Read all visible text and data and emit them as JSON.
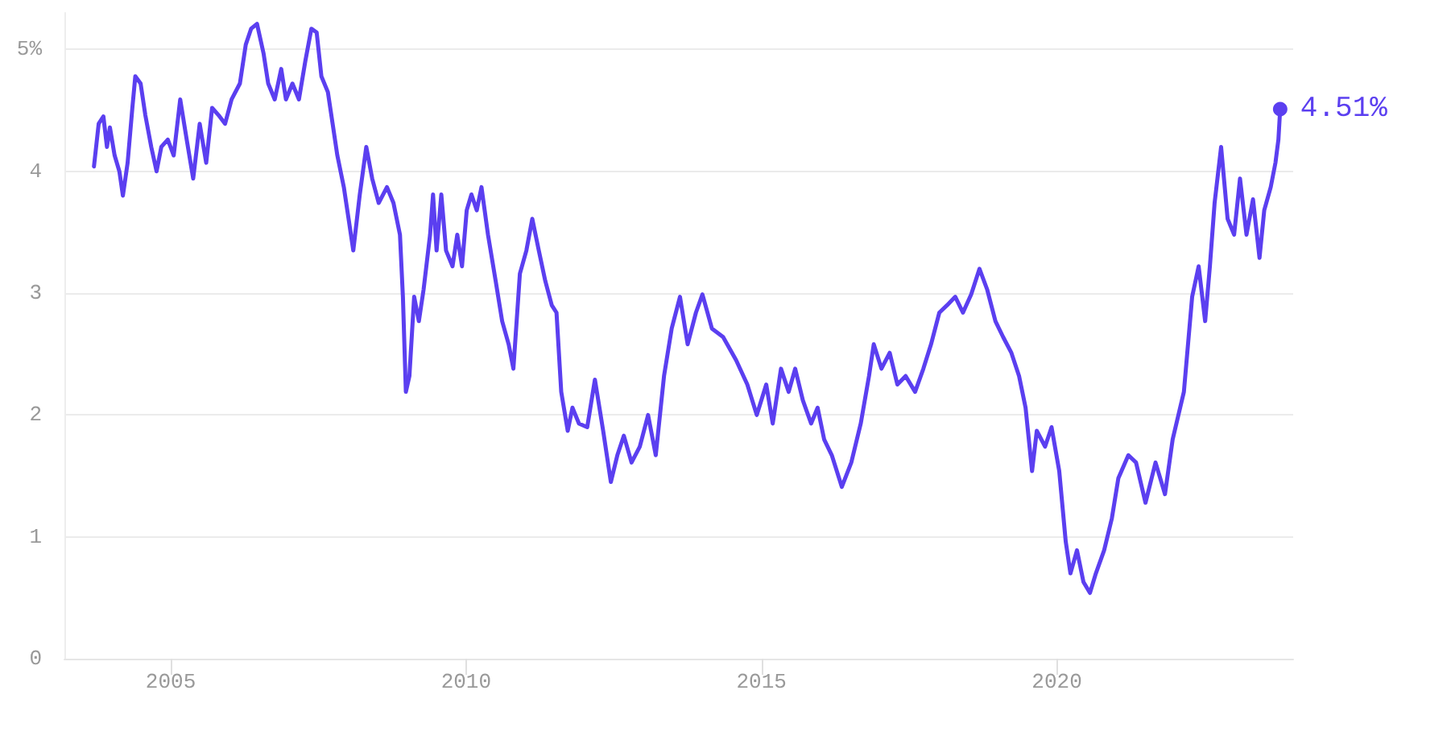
{
  "chart_data": {
    "type": "line",
    "x": [
      2003.7,
      2003.78,
      2003.86,
      2003.92,
      2003.97,
      2004.05,
      2004.13,
      2004.19,
      2004.27,
      2004.35,
      2004.4,
      2004.49,
      2004.57,
      2004.67,
      2004.76,
      2004.84,
      2004.95,
      2005.05,
      2005.16,
      2005.27,
      2005.38,
      2005.49,
      2005.6,
      2005.7,
      2005.81,
      2005.92,
      2006.03,
      2006.17,
      2006.27,
      2006.36,
      2006.46,
      2006.57,
      2006.65,
      2006.76,
      2006.87,
      2006.95,
      2007.06,
      2007.17,
      2007.28,
      2007.38,
      2007.47,
      2007.55,
      2007.66,
      2007.74,
      2007.82,
      2007.93,
      2008.01,
      2008.09,
      2008.2,
      2008.31,
      2008.41,
      2008.52,
      2008.66,
      2008.77,
      2008.88,
      2008.93,
      2008.98,
      2009.04,
      2009.12,
      2009.2,
      2009.28,
      2009.39,
      2009.44,
      2009.5,
      2009.58,
      2009.66,
      2009.77,
      2009.85,
      2009.93,
      2010.01,
      2010.09,
      2010.18,
      2010.26,
      2010.37,
      2010.5,
      2010.61,
      2010.72,
      2010.8,
      2010.91,
      2011.02,
      2011.12,
      2011.23,
      2011.34,
      2011.45,
      2011.53,
      2011.61,
      2011.72,
      2011.8,
      2011.91,
      2012.05,
      2012.18,
      2012.32,
      2012.45,
      2012.56,
      2012.67,
      2012.8,
      2012.94,
      2013.08,
      2013.21,
      2013.35,
      2013.48,
      2013.62,
      2013.75,
      2013.89,
      2014.0,
      2014.16,
      2014.35,
      2014.57,
      2014.76,
      2014.92,
      2015.08,
      2015.19,
      2015.33,
      2015.46,
      2015.57,
      2015.7,
      2015.84,
      2015.95,
      2016.06,
      2016.19,
      2016.36,
      2016.52,
      2016.68,
      2016.82,
      2016.9,
      2017.03,
      2017.17,
      2017.3,
      2017.44,
      2017.6,
      2017.74,
      2017.87,
      2018.01,
      2018.14,
      2018.28,
      2018.41,
      2018.55,
      2018.69,
      2018.82,
      2018.96,
      2019.09,
      2019.23,
      2019.36,
      2019.47,
      2019.58,
      2019.66,
      2019.8,
      2019.91,
      2020.04,
      2020.15,
      2020.23,
      2020.34,
      2020.45,
      2020.56,
      2020.66,
      2020.8,
      2020.93,
      2021.04,
      2021.21,
      2021.34,
      2021.5,
      2021.67,
      2021.83,
      2021.96,
      2022.15,
      2022.29,
      2022.4,
      2022.51,
      2022.59,
      2022.67,
      2022.78,
      2022.89,
      2023.0,
      2023.1,
      2023.21,
      2023.32,
      2023.43,
      2023.51,
      2023.62,
      2023.7,
      2023.75,
      2023.78
    ],
    "series": [
      {
        "color": "#5b3ff0",
        "values": [
          4.04,
          4.39,
          4.45,
          4.2,
          4.36,
          4.13,
          4.0,
          3.8,
          4.07,
          4.52,
          4.78,
          4.72,
          4.46,
          4.2,
          4.0,
          4.2,
          4.26,
          4.13,
          4.59,
          4.26,
          3.94,
          4.39,
          4.07,
          4.52,
          4.46,
          4.39,
          4.59,
          4.72,
          5.04,
          5.17,
          5.21,
          4.97,
          4.72,
          4.59,
          4.84,
          4.59,
          4.72,
          4.59,
          4.91,
          5.17,
          5.14,
          4.78,
          4.65,
          4.39,
          4.13,
          3.87,
          3.61,
          3.35,
          3.81,
          4.2,
          3.94,
          3.74,
          3.87,
          3.74,
          3.48,
          2.97,
          2.19,
          2.32,
          2.97,
          2.77,
          3.03,
          3.48,
          3.81,
          3.35,
          3.81,
          3.35,
          3.22,
          3.48,
          3.22,
          3.68,
          3.81,
          3.68,
          3.87,
          3.48,
          3.1,
          2.77,
          2.58,
          2.38,
          3.16,
          3.35,
          3.61,
          3.35,
          3.1,
          2.9,
          2.84,
          2.19,
          1.87,
          2.06,
          1.93,
          1.9,
          2.29,
          1.87,
          1.45,
          1.67,
          1.83,
          1.61,
          1.74,
          2.0,
          1.67,
          2.32,
          2.71,
          2.97,
          2.58,
          2.84,
          2.99,
          2.71,
          2.64,
          2.45,
          2.25,
          2.0,
          2.25,
          1.93,
          2.38,
          2.19,
          2.38,
          2.12,
          1.93,
          2.06,
          1.8,
          1.67,
          1.41,
          1.61,
          1.93,
          2.32,
          2.58,
          2.38,
          2.51,
          2.25,
          2.32,
          2.19,
          2.38,
          2.58,
          2.84,
          2.9,
          2.97,
          2.84,
          2.99,
          3.2,
          3.03,
          2.77,
          2.64,
          2.51,
          2.32,
          2.06,
          1.54,
          1.87,
          1.74,
          1.9,
          1.54,
          0.96,
          0.7,
          0.89,
          0.63,
          0.54,
          0.7,
          0.89,
          1.15,
          1.48,
          1.67,
          1.61,
          1.28,
          1.61,
          1.35,
          1.8,
          2.19,
          2.97,
          3.22,
          2.77,
          3.22,
          3.74,
          4.2,
          3.61,
          3.48,
          3.94,
          3.48,
          3.77,
          3.29,
          3.68,
          3.87,
          4.07,
          4.26,
          4.51
        ]
      }
    ],
    "xlim": [
      2003.2,
      2024
    ],
    "xticks": [
      2005,
      2010,
      2015,
      2020
    ],
    "ylim": [
      0,
      5.3
    ],
    "yticks": [
      0,
      1,
      2,
      3,
      4,
      {
        "value": 5,
        "label": "5%"
      }
    ],
    "grid": "y",
    "marker": "none",
    "line_style": "solid",
    "annotations": [
      {
        "text": "4.51%",
        "x": 2023.78,
        "y": 4.51
      }
    ]
  }
}
